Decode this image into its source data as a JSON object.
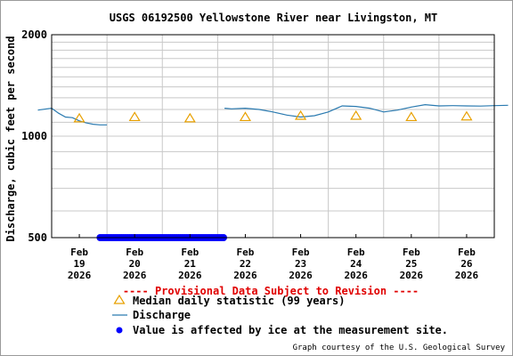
{
  "chart_data": {
    "type": "line",
    "title": "USGS 06192500 Yellowstone River near Livingston, MT",
    "ylabel": "Discharge, cubic feet per second",
    "xlabel": "",
    "y_scale": "log",
    "ylim": [
      500,
      2000
    ],
    "y_ticks": [
      "2000",
      "1000",
      "500"
    ],
    "x_ticks": [
      {
        "line1": "Feb",
        "line2": "19",
        "line3": "2026"
      },
      {
        "line1": "Feb",
        "line2": "20",
        "line3": "2026"
      },
      {
        "line1": "Feb",
        "line2": "21",
        "line3": "2026"
      },
      {
        "line1": "Feb",
        "line2": "22",
        "line3": "2026"
      },
      {
        "line1": "Feb",
        "line2": "23",
        "line3": "2026"
      },
      {
        "line1": "Feb",
        "line2": "24",
        "line3": "2026"
      },
      {
        "line1": "Feb",
        "line2": "25",
        "line3": "2026"
      },
      {
        "line1": "Feb",
        "line2": "26",
        "line3": "2026"
      }
    ],
    "grid": true,
    "series": [
      {
        "name": "Discharge",
        "color": "#2a7ab0",
        "segments": [
          {
            "x": [
              "2026-02-18 18:00",
              "2026-02-19 00:00",
              "2026-02-19 03:00",
              "2026-02-19 06:00",
              "2026-02-19 09:00",
              "2026-02-19 12:00",
              "2026-02-19 15:00",
              "2026-02-19 18:00",
              "2026-02-19 21:00",
              "2026-02-20 00:00"
            ],
            "y": [
              1195,
              1210,
              1170,
              1140,
              1135,
              1110,
              1095,
              1085,
              1080,
              1080
            ]
          },
          {
            "x": [
              "2026-02-22 03:00",
              "2026-02-22 06:00",
              "2026-02-22 12:00",
              "2026-02-22 18:00",
              "2026-02-23 00:00",
              "2026-02-23 06:00",
              "2026-02-23 12:00",
              "2026-02-23 18:00",
              "2026-02-24 00:00",
              "2026-02-24 06:00",
              "2026-02-24 12:00",
              "2026-02-24 18:00",
              "2026-02-25 00:00",
              "2026-02-25 06:00",
              "2026-02-25 12:00",
              "2026-02-25 18:00",
              "2026-02-26 00:00",
              "2026-02-26 06:00",
              "2026-02-26 12:00",
              "2026-02-26 18:00",
              "2026-02-27 00:00",
              "2026-02-27 06:00"
            ],
            "y": [
              1210,
              1205,
              1210,
              1200,
              1180,
              1155,
              1140,
              1150,
              1180,
              1230,
              1225,
              1210,
              1180,
              1195,
              1220,
              1240,
              1230,
              1232,
              1230,
              1228,
              1232,
              1235
            ]
          }
        ]
      },
      {
        "name": "Median daily statistic (99 years)",
        "color": "#e8a000",
        "marker": "triangle",
        "x": [
          "2026-02-19 12:00",
          "2026-02-20 12:00",
          "2026-02-21 12:00",
          "2026-02-22 12:00",
          "2026-02-23 12:00",
          "2026-02-24 12:00",
          "2026-02-25 12:00",
          "2026-02-26 12:00"
        ],
        "y": [
          1130,
          1140,
          1130,
          1140,
          1150,
          1150,
          1140,
          1145
        ]
      },
      {
        "name": "Value is affected by ice at the measurement site.",
        "color": "#0000ff",
        "marker": "dot",
        "x_start": "2026-02-19 21:00",
        "x_end": "2026-02-22 03:00",
        "y": 500
      }
    ],
    "provisional": "---- Provisional Data Subject to Revision ----",
    "legend": [
      {
        "label": "Median daily statistic (99 years)",
        "symbol": "triangle"
      },
      {
        "label": "Discharge",
        "symbol": "line"
      },
      {
        "label": "Value is affected by ice at the measurement site.",
        "symbol": "dot"
      }
    ],
    "credit": "Graph courtesy of the U.S. Geological Survey"
  },
  "colors": {
    "grid": "#c8c8c8",
    "axis": "#000000",
    "discharge": "#2a7ab0",
    "median": "#e8a000",
    "ice": "#0000ff",
    "provisional": "#e00000"
  }
}
